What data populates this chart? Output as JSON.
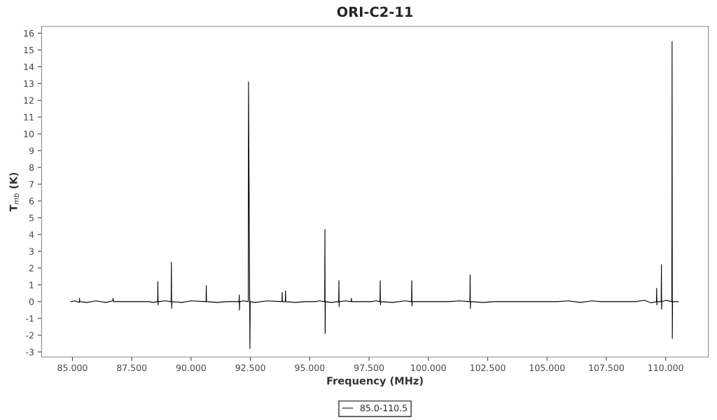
{
  "chart_data": {
    "type": "line",
    "title": "ORI-C2-11",
    "xlabel": "Frequency (MHz)",
    "ylabel": "T$_{mb}$ (K)",
    "xlim": [
      83.7,
      111.8
    ],
    "ylim": [
      -3.3,
      16.4
    ],
    "xticks": [
      {
        "value": 85,
        "label": "85.000"
      },
      {
        "value": 87.5,
        "label": "87.500"
      },
      {
        "value": 90,
        "label": "90.000"
      },
      {
        "value": 92.5,
        "label": "92.500"
      },
      {
        "value": 95,
        "label": "95.000"
      },
      {
        "value": 97.5,
        "label": "97.500"
      },
      {
        "value": 100,
        "label": "100.000"
      },
      {
        "value": 102.5,
        "label": "102.500"
      },
      {
        "value": 105,
        "label": "105.000"
      },
      {
        "value": 107.5,
        "label": "107.500"
      },
      {
        "value": 110,
        "label": "110.000"
      }
    ],
    "yticks": [
      -3,
      -2,
      -1,
      0,
      1,
      2,
      3,
      4,
      5,
      6,
      7,
      8,
      9,
      10,
      11,
      12,
      13,
      14,
      15,
      16
    ],
    "grid": false,
    "legend": "bottom",
    "marker": "none",
    "line_style": "solid",
    "series": [
      {
        "name": "85.0-110.5",
        "color": "#000000",
        "x": [
          84.94,
          85.1,
          85.29,
          85.3,
          85.31,
          85.6,
          86.0,
          86.4,
          86.7,
          86.71,
          86.74,
          88.22,
          88.4,
          88.59,
          88.6,
          88.61,
          88.62,
          88.9,
          89.16,
          89.17,
          89.18,
          89.19,
          89.6,
          90.0,
          90.63,
          90.64,
          90.65,
          91.1,
          91.5,
          91.9,
          92.02,
          92.03,
          92.04,
          92.05,
          92.2,
          92.41,
          92.42,
          92.48,
          92.49,
          92.7,
          93.2,
          93.83,
          93.84,
          93.85,
          93.97,
          93.98,
          93.99,
          94.4,
          94.78,
          95.25,
          95.4,
          95.63,
          95.64,
          95.65,
          95.66,
          95.9,
          96.22,
          96.23,
          96.24,
          96.25,
          96.5,
          96.75,
          96.76,
          96.77,
          97.09,
          97.59,
          97.8,
          97.96,
          97.97,
          97.98,
          97.99,
          98.5,
          99.0,
          99.29,
          99.3,
          99.31,
          99.32,
          99.45,
          100.87,
          101.3,
          101.75,
          101.76,
          101.77,
          101.78,
          102.3,
          102.76,
          105.42,
          105.9,
          106.4,
          106.9,
          107.25,
          108.73,
          109.1,
          109.4,
          109.61,
          109.62,
          109.63,
          109.64,
          109.81,
          109.82,
          109.83,
          109.84,
          110.0,
          110.26,
          110.27,
          110.28,
          110.29,
          110.53
        ],
        "values": [
          0,
          0.05,
          -0.05,
          0.2,
          0,
          -0.05,
          0.05,
          -0.05,
          0.05,
          0.2,
          0,
          0,
          -0.05,
          0,
          1.2,
          -0.2,
          0,
          0.05,
          0,
          2.35,
          -0.4,
          0,
          -0.05,
          0.05,
          0,
          0.95,
          0,
          -0.05,
          0,
          0,
          0,
          0.4,
          -0.5,
          0,
          0.05,
          0,
          13.1,
          -2.8,
          0,
          -0.05,
          0.05,
          0,
          0.55,
          0,
          0,
          0.65,
          0,
          -0.05,
          0,
          0,
          0.05,
          0,
          4.3,
          -1.9,
          0,
          -0.05,
          0,
          1.25,
          -0.3,
          0,
          0.05,
          0,
          0.2,
          0,
          0,
          0,
          0.05,
          0,
          1.25,
          -0.2,
          0,
          -0.05,
          0.05,
          0,
          1.25,
          -0.25,
          0,
          0,
          0,
          0.05,
          0,
          1.6,
          -0.4,
          0,
          -0.05,
          0,
          0,
          0.05,
          -0.05,
          0.05,
          0,
          0,
          0.08,
          -0.08,
          0,
          0.8,
          -0.2,
          0,
          0,
          2.2,
          -0.45,
          0,
          0.08,
          0,
          15.5,
          -2.2,
          0,
          0
        ]
      }
    ]
  }
}
